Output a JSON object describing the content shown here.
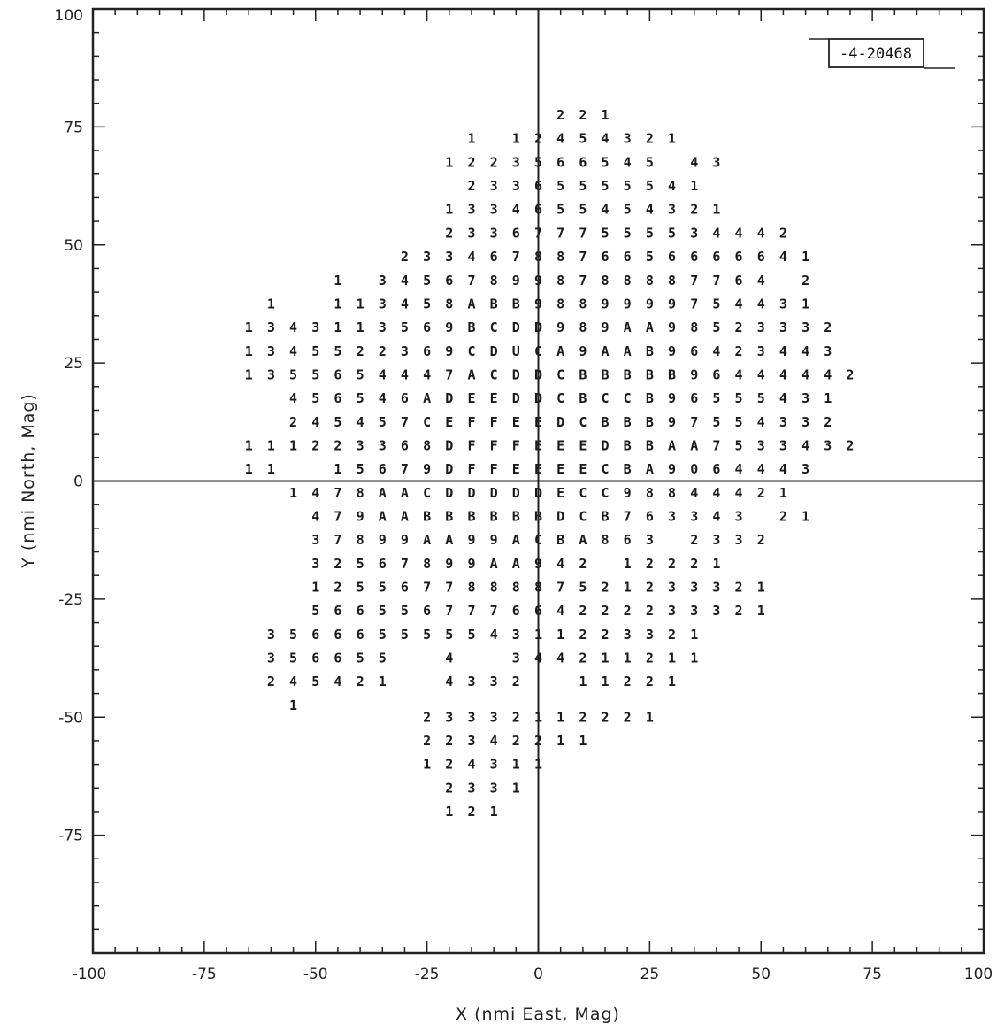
{
  "chart_data": {
    "type": "table",
    "title": "",
    "figure_id": "-4-20468",
    "xlabel": "X (nmi East, Mag)",
    "ylabel": "Y (nmi North, Mag)",
    "xlim": [
      -100,
      100
    ],
    "ylim": [
      -100,
      100
    ],
    "x_ticks": [
      "-100",
      "-75",
      "-50",
      "-25",
      "0",
      "25",
      "50",
      "75",
      "100"
    ],
    "y_ticks": [
      "100",
      "75",
      "50",
      "25",
      "0",
      "-25",
      "-50",
      "-75"
    ],
    "grid": false,
    "cell_spacing_nmi": 5,
    "rows": [
      {
        "y": 77.5,
        "x0": 5,
        "cells": "221"
      },
      {
        "y": 72.5,
        "x0": -15,
        "cells": "1 12454321"
      },
      {
        "y": 67.5,
        "x0": -20,
        "cells": "1223566545 43"
      },
      {
        "y": 62.5,
        "x0": -15,
        "cells": "23365555541"
      },
      {
        "y": 57.5,
        "x0": -20,
        "cells": "1334655454321"
      },
      {
        "y": 52.5,
        "x0": -20,
        "cells": "2336777555534442"
      },
      {
        "y": 47.5,
        "x0": -30,
        "cells": "2334678876656666641"
      },
      {
        "y": 42.5,
        "x0": -45,
        "cells": "1 345678998788887764 2"
      },
      {
        "y": 37.5,
        "x0": -60,
        "cells": "1  113458ABB9889999754431"
      },
      {
        "y": 32.5,
        "x0": -65,
        "cells": "1343113569BCDD989AA98523332"
      },
      {
        "y": 27.5,
        "x0": -65,
        "cells": "1345522369CDUCA9AAB96423443"
      },
      {
        "y": 22.5,
        "x0": -65,
        "cells": "1355654447ACDDCBBBBB96444442"
      },
      {
        "y": 17.5,
        "x0": -55,
        "cells": "456546ADEEDDCBCCB96555431"
      },
      {
        "y": 12.5,
        "x0": -55,
        "cells": "245457CEFFEEDCBBB97554332"
      },
      {
        "y": 7.5,
        "x0": -65,
        "cells": "111223368DFFFEEEDBBAA7533432"
      },
      {
        "y": 2.5,
        "x0": -65,
        "cells": "11  15679DFFEEEECBA9064443"
      },
      {
        "y": -2.5,
        "x0": -55,
        "cells": "1478AACDDDDDECC98844421"
      },
      {
        "y": -7.5,
        "x0": -50,
        "cells": "479AABBBBBBDCB763343 21"
      },
      {
        "y": -12.5,
        "x0": -50,
        "cells": "37899AA99ACBA863 2332"
      },
      {
        "y": -17.5,
        "x0": -50,
        "cells": "32567899AA942 12221"
      },
      {
        "y": -22.5,
        "x0": -50,
        "cells": "125567788887521233321"
      },
      {
        "y": -27.5,
        "x0": -50,
        "cells": "566556777664222233321"
      },
      {
        "y": -32.5,
        "x0": -60,
        "cells": "35666555554311223321"
      },
      {
        "y": -37.5,
        "x0": -60,
        "cells": "356655  4  344211211"
      },
      {
        "y": -42.5,
        "x0": -60,
        "cells": "245421  4332  11221"
      },
      {
        "y": -47.5,
        "x0": -55,
        "cells": "1"
      },
      {
        "y": -50.0,
        "x0": -25,
        "cells": "23332112221"
      },
      {
        "y": -55.0,
        "x0": -25,
        "cells": "22342211"
      },
      {
        "y": -60.0,
        "x0": -25,
        "cells": "124311"
      },
      {
        "y": -65.0,
        "x0": -20,
        "cells": "2331"
      },
      {
        "y": -70.0,
        "x0": -20,
        "cells": "121"
      }
    ]
  }
}
